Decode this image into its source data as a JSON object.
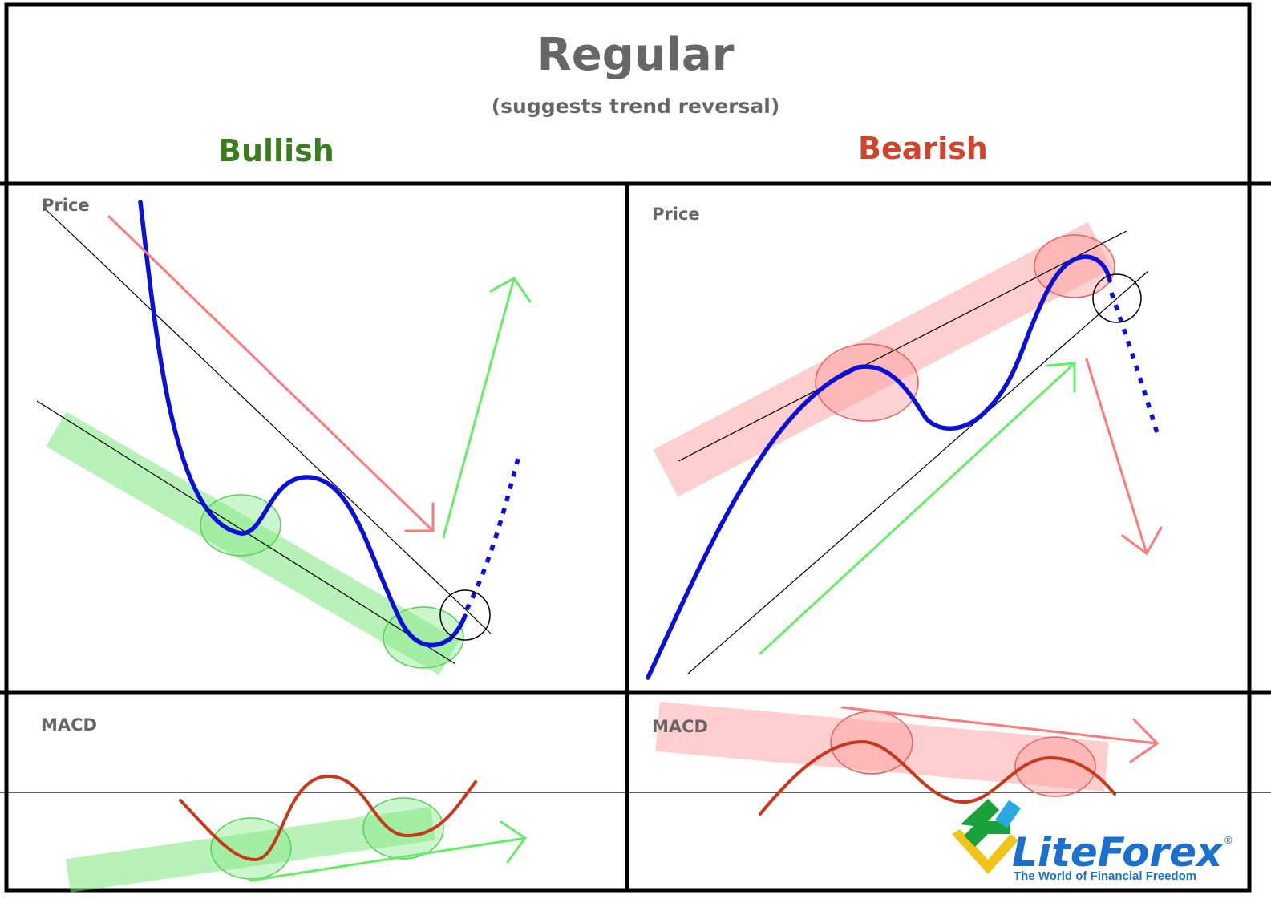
{
  "header": {
    "title": "Regular",
    "subtitle": "(suggests trend reversal)"
  },
  "columns": {
    "bullish": {
      "label": "Bullish",
      "color": "#3a7d1e"
    },
    "bearish": {
      "label": "Bearish",
      "color": "#d0432c"
    }
  },
  "panels": {
    "bullish_price_label": "Price",
    "bearish_price_label": "Price",
    "bullish_macd_label": "MACD",
    "bearish_macd_label": "MACD"
  },
  "logo": {
    "name": "LiteForex",
    "tagline": "The World of Financial Freedom",
    "registered": "®",
    "name_color": "#1a6fcf",
    "tagline_color": "#1a6fcf"
  },
  "colors": {
    "price_line": "#0a10d8",
    "macd_line": "#c8391b",
    "bullish_highlight": "#7fe87f",
    "bearish_highlight": "#ff9e9e",
    "trend_arrow_up": "#66ee66",
    "trend_arrow_down": "#ff7a7a",
    "frame": "#000000"
  }
}
